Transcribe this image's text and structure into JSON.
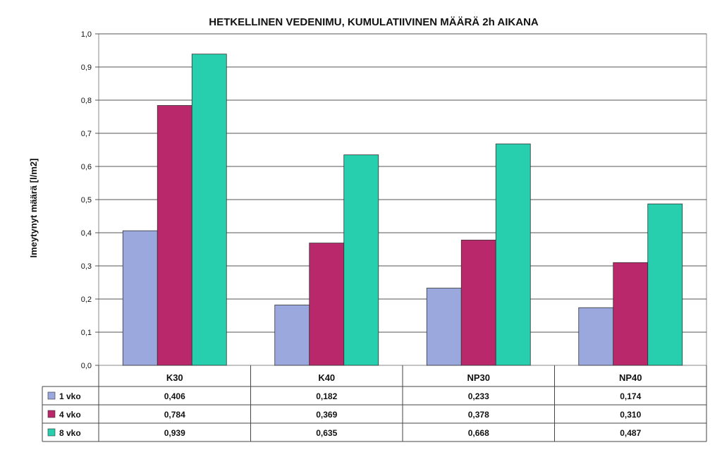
{
  "chart_data": {
    "type": "bar",
    "title": "HETKELLINEN VEDENIMU, KUMULATIIVINEN MÄÄRÄ 2h AIKANA",
    "ylabel": "Imeytynyt määrä [l/m2]",
    "xlabel": "",
    "ylim": [
      0,
      1.0
    ],
    "y_ticks": [
      "0,0",
      "0,1",
      "0,2",
      "0,3",
      "0,4",
      "0,5",
      "0,6",
      "0,7",
      "0,8",
      "0,9",
      "1,0"
    ],
    "grid": true,
    "legend_placement": "data-table-left",
    "categories": [
      "K30",
      "K40",
      "NP30",
      "NP40"
    ],
    "series": [
      {
        "name": "1 vko",
        "color": "#9aa8dd",
        "values": [
          0.406,
          0.182,
          0.233,
          0.174
        ],
        "labels": [
          "0,406",
          "0,182",
          "0,233",
          "0,174"
        ]
      },
      {
        "name": "4 vko",
        "color": "#b8286a",
        "values": [
          0.784,
          0.369,
          0.378,
          0.31
        ],
        "labels": [
          "0,784",
          "0,369",
          "0,378",
          "0,310"
        ]
      },
      {
        "name": "8 vko",
        "color": "#27cfae",
        "values": [
          0.939,
          0.635,
          0.668,
          0.487
        ],
        "labels": [
          "0,939",
          "0,635",
          "0,668",
          "0,487"
        ]
      }
    ]
  }
}
